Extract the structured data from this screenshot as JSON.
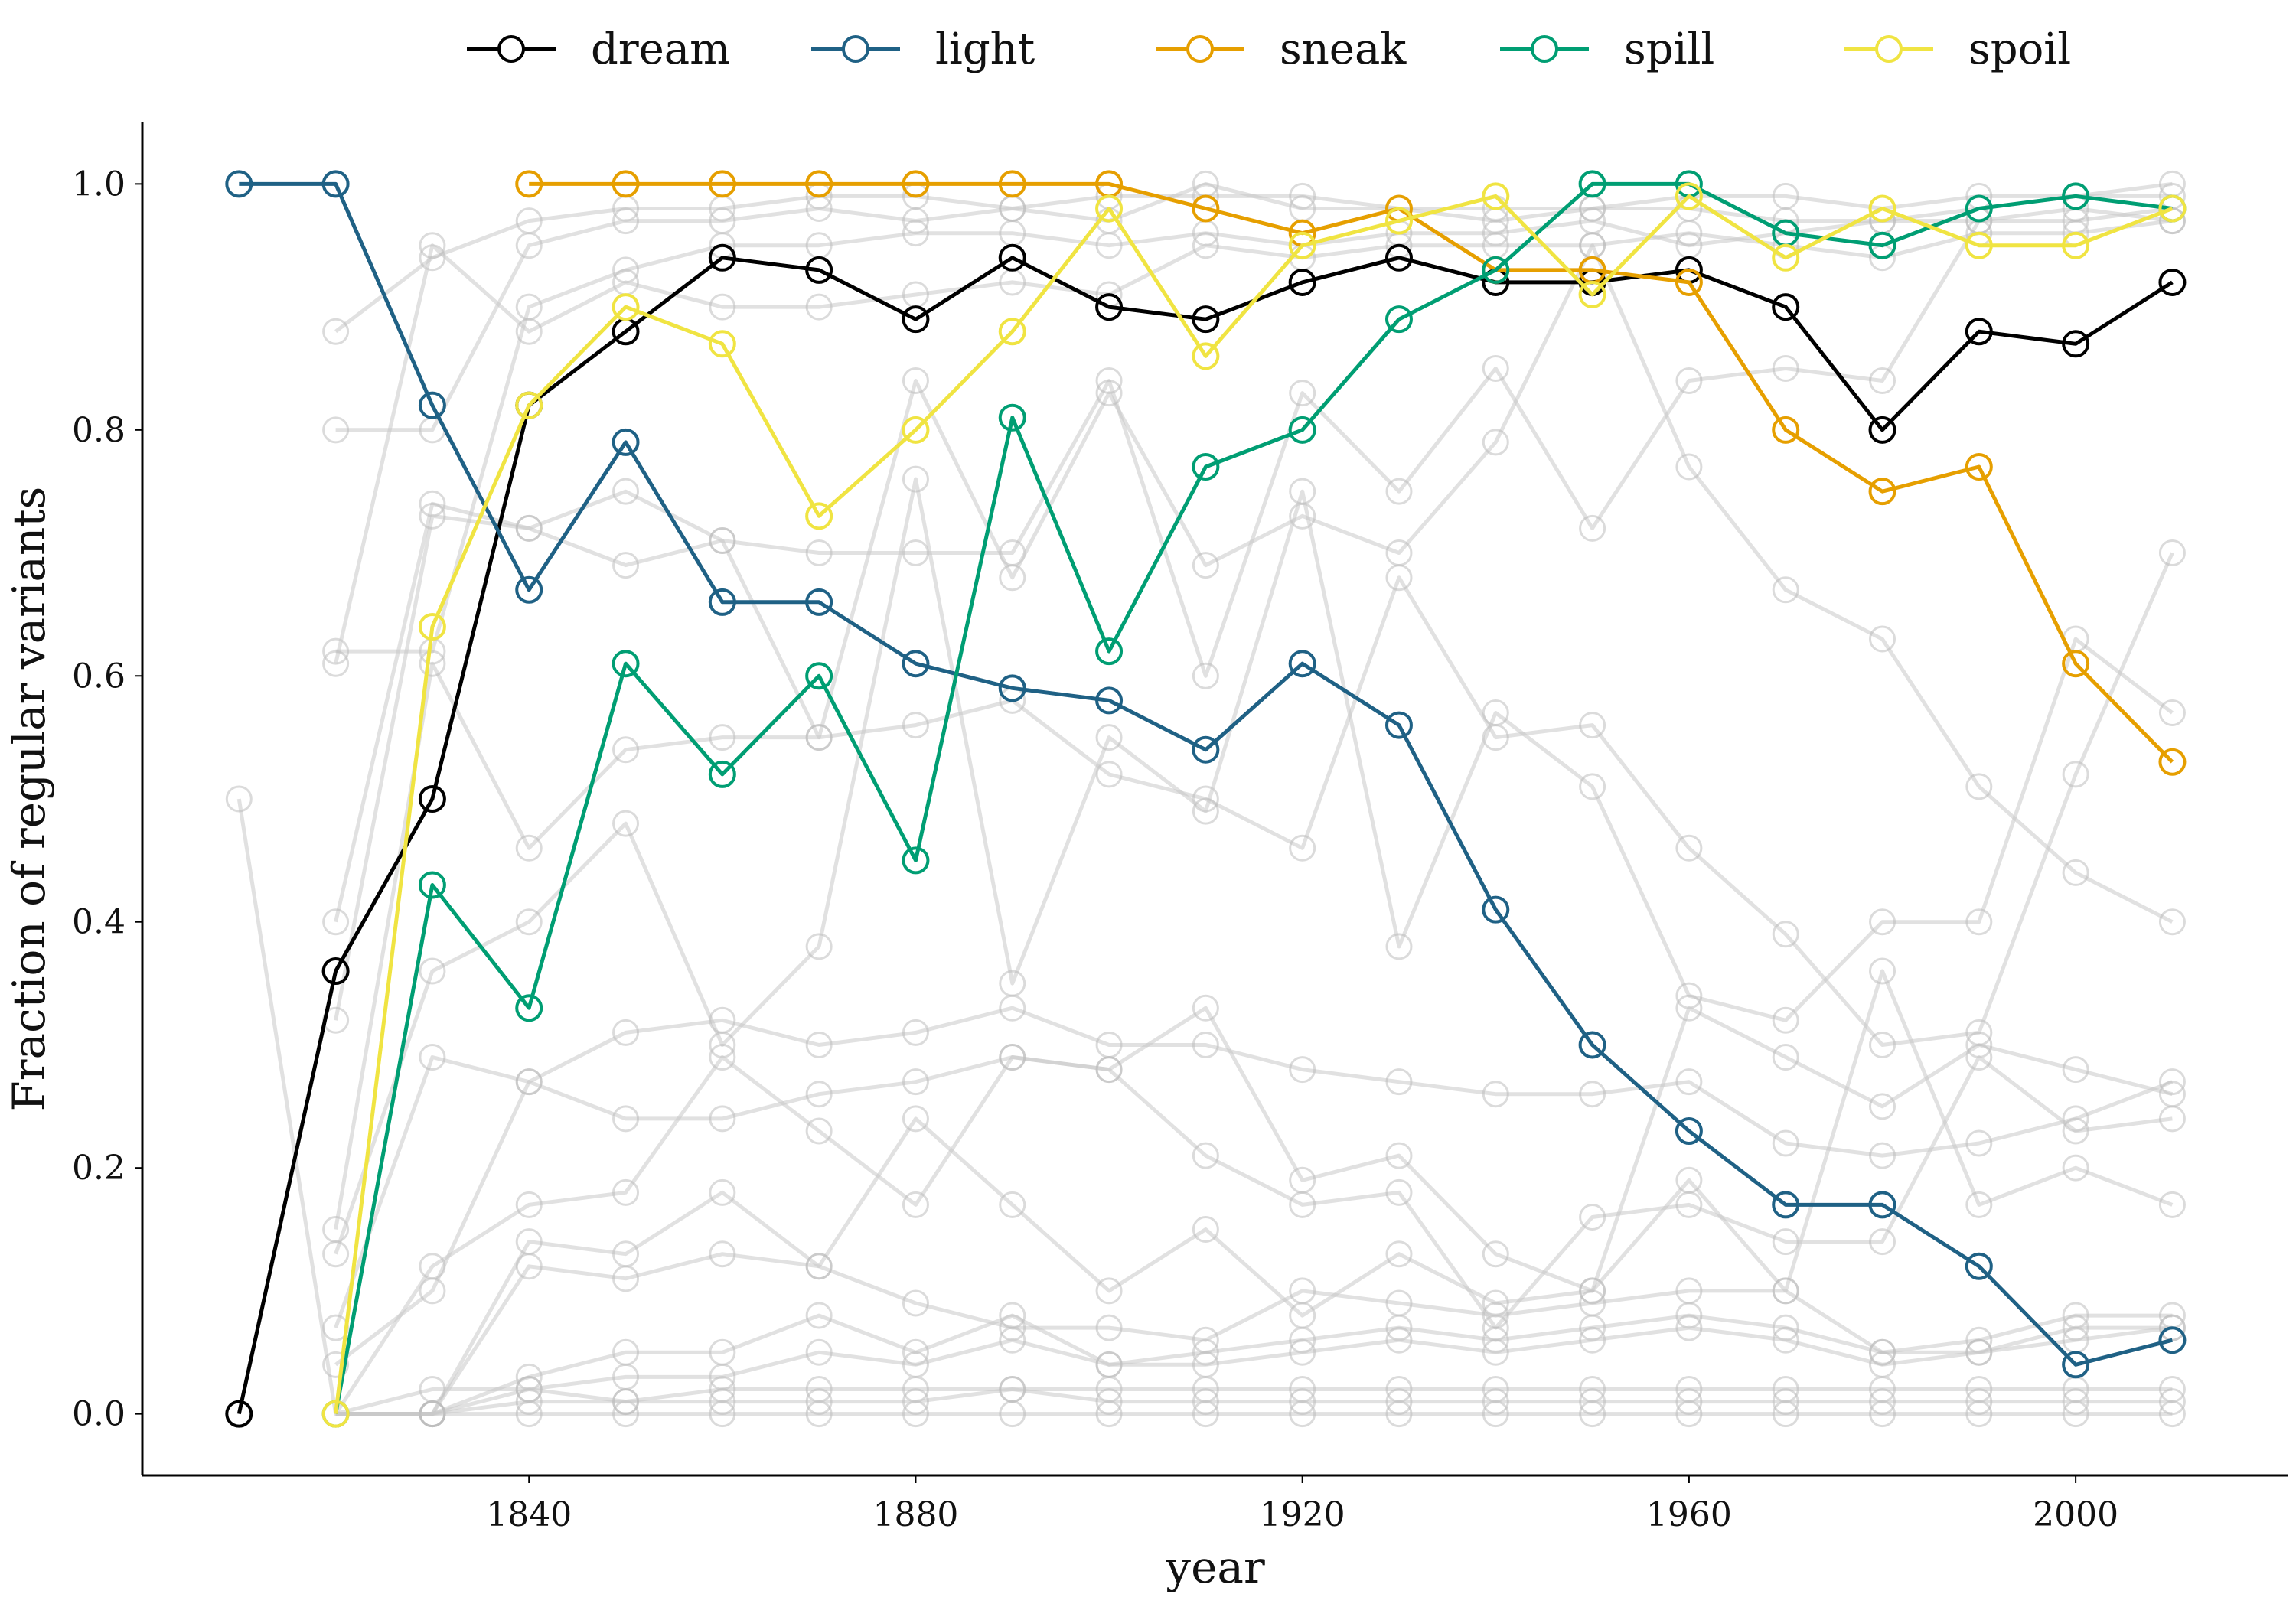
{
  "chart_data": {
    "type": "line",
    "xlabel": "year",
    "ylabel": "Fraction of regular variants",
    "xlim": [
      1800,
      2022
    ],
    "ylim": [
      -0.05,
      1.05
    ],
    "xticks": [
      1840,
      1880,
      1920,
      1960,
      2000
    ],
    "yticks": [
      0.0,
      0.2,
      0.4,
      0.6,
      0.8,
      1.0
    ],
    "ytick_labels": [
      "0.0",
      "0.2",
      "0.4",
      "0.6",
      "0.8",
      "1.0"
    ],
    "grid": false,
    "legend": "top",
    "x": [
      1810,
      1820,
      1830,
      1840,
      1850,
      1860,
      1870,
      1880,
      1890,
      1900,
      1910,
      1920,
      1930,
      1940,
      1950,
      1960,
      1970,
      1980,
      1990,
      2000,
      2010
    ],
    "series": [
      {
        "name": "dream",
        "color": "#000000",
        "values": [
          0.0,
          0.36,
          0.5,
          0.82,
          0.88,
          0.94,
          0.93,
          0.89,
          0.94,
          0.9,
          0.89,
          0.92,
          0.94,
          0.92,
          0.92,
          0.93,
          0.9,
          0.8,
          0.88,
          0.87,
          0.92
        ]
      },
      {
        "name": "light",
        "color": "#1f6185",
        "values": [
          1.0,
          1.0,
          0.82,
          0.67,
          0.79,
          0.66,
          0.66,
          0.61,
          0.59,
          0.58,
          0.54,
          0.61,
          0.56,
          0.41,
          0.3,
          0.23,
          0.17,
          0.17,
          0.12,
          0.04,
          0.06
        ]
      },
      {
        "name": "sneak",
        "color": "#e69f00",
        "values": [
          null,
          null,
          null,
          1.0,
          1.0,
          1.0,
          1.0,
          1.0,
          1.0,
          1.0,
          0.98,
          0.96,
          0.98,
          0.93,
          0.93,
          0.92,
          0.8,
          0.75,
          0.77,
          0.61,
          0.53
        ]
      },
      {
        "name": "spill",
        "color": "#009e73",
        "values": [
          null,
          0.0,
          0.43,
          0.33,
          0.61,
          0.52,
          0.6,
          0.45,
          0.81,
          0.62,
          0.77,
          0.8,
          0.89,
          0.93,
          1.0,
          1.0,
          0.96,
          0.95,
          0.98,
          0.99,
          0.98
        ]
      },
      {
        "name": "spoil",
        "color": "#f0e442",
        "values": [
          null,
          0.0,
          0.64,
          0.82,
          0.9,
          0.87,
          0.73,
          0.8,
          0.88,
          0.98,
          0.86,
          0.95,
          0.97,
          0.99,
          0.91,
          0.99,
          0.94,
          0.98,
          0.95,
          0.95,
          0.98
        ]
      }
    ],
    "background_series": [
      [
        0.5,
        0.0,
        0.0,
        0.0,
        0.0,
        0.0,
        0.0,
        0.0,
        0.0,
        0.0,
        0.0,
        0.0,
        0.0,
        0.0,
        0.0,
        0.0,
        0.0,
        0.0,
        0.0,
        0.0,
        0.0
      ],
      [
        null,
        0.88,
        0.94,
        0.97,
        0.98,
        0.98,
        0.99,
        0.99,
        0.98,
        0.99,
        0.99,
        0.99,
        0.98,
        0.98,
        0.98,
        0.99,
        0.99,
        0.98,
        0.99,
        0.99,
        0.99
      ],
      [
        null,
        0.8,
        0.8,
        0.95,
        0.97,
        0.97,
        0.98,
        0.97,
        0.98,
        0.97,
        1.0,
        0.98,
        0.98,
        0.97,
        0.98,
        0.98,
        0.97,
        0.97,
        0.98,
        0.99,
        1.0
      ],
      [
        null,
        0.62,
        0.62,
        0.9,
        0.93,
        0.95,
        0.95,
        0.96,
        0.96,
        0.95,
        0.96,
        0.95,
        0.96,
        0.96,
        0.97,
        0.95,
        0.96,
        0.97,
        0.97,
        0.97,
        0.98
      ],
      [
        null,
        0.61,
        0.95,
        0.88,
        0.92,
        0.9,
        0.9,
        0.91,
        0.92,
        0.91,
        0.95,
        0.94,
        0.95,
        0.95,
        0.95,
        0.96,
        0.95,
        0.94,
        0.96,
        0.96,
        0.97
      ],
      [
        null,
        0.4,
        0.74,
        0.72,
        0.75,
        0.71,
        0.7,
        0.7,
        0.7,
        0.84,
        0.6,
        0.83,
        0.75,
        0.85,
        0.72,
        0.84,
        0.85,
        0.84,
        0.97,
        0.98,
        0.97
      ],
      [
        null,
        0.32,
        0.73,
        0.72,
        0.69,
        0.71,
        0.55,
        0.84,
        0.68,
        0.83,
        0.69,
        0.73,
        0.7,
        0.79,
        0.95,
        0.77,
        0.67,
        0.63,
        0.51,
        0.44,
        0.4
      ],
      [
        null,
        0.15,
        0.61,
        0.46,
        0.54,
        0.55,
        0.55,
        0.56,
        0.58,
        0.52,
        0.5,
        0.46,
        0.68,
        0.55,
        0.56,
        0.46,
        0.39,
        0.3,
        0.31,
        0.52,
        0.7
      ],
      [
        null,
        0.13,
        0.36,
        0.4,
        0.48,
        0.3,
        0.38,
        0.76,
        0.35,
        0.55,
        0.49,
        0.75,
        0.38,
        0.57,
        0.51,
        0.34,
        0.32,
        0.4,
        0.4,
        0.63,
        0.57
      ],
      [
        null,
        0.07,
        0.29,
        0.27,
        0.31,
        0.32,
        0.3,
        0.31,
        0.33,
        0.3,
        0.3,
        0.28,
        0.27,
        0.26,
        0.26,
        0.27,
        0.22,
        0.21,
        0.22,
        0.24,
        0.27
      ],
      [
        null,
        0.04,
        0.1,
        0.27,
        0.24,
        0.24,
        0.26,
        0.27,
        0.29,
        0.28,
        0.33,
        0.19,
        0.21,
        0.13,
        0.1,
        0.33,
        0.29,
        0.25,
        0.3,
        0.28,
        0.26
      ],
      [
        null,
        0.0,
        0.12,
        0.17,
        0.18,
        0.29,
        0.23,
        0.17,
        0.29,
        0.28,
        0.21,
        0.17,
        0.18,
        0.07,
        0.16,
        0.17,
        0.14,
        0.14,
        0.29,
        0.23,
        0.24
      ],
      [
        null,
        0.0,
        0.0,
        0.14,
        0.13,
        0.18,
        0.12,
        0.24,
        0.17,
        0.1,
        0.15,
        0.08,
        0.13,
        0.09,
        0.1,
        0.19,
        0.1,
        0.36,
        0.17,
        0.2,
        0.17
      ],
      [
        null,
        0.0,
        0.0,
        0.12,
        0.11,
        0.13,
        0.12,
        0.09,
        0.07,
        0.07,
        0.06,
        0.1,
        0.09,
        0.08,
        0.09,
        0.1,
        0.1,
        0.05,
        0.06,
        0.08,
        0.08
      ],
      [
        null,
        0.0,
        0.0,
        0.03,
        0.05,
        0.05,
        0.08,
        0.05,
        0.08,
        0.04,
        0.05,
        0.06,
        0.07,
        0.06,
        0.07,
        0.08,
        0.07,
        0.05,
        0.05,
        0.07,
        0.07
      ],
      [
        null,
        0.0,
        0.0,
        0.02,
        0.03,
        0.03,
        0.05,
        0.04,
        0.06,
        0.04,
        0.04,
        0.05,
        0.06,
        0.05,
        0.06,
        0.07,
        0.06,
        0.04,
        0.05,
        0.06,
        0.07
      ],
      [
        null,
        0.0,
        0.0,
        0.01,
        0.01,
        0.02,
        0.02,
        0.02,
        0.02,
        0.02,
        0.02,
        0.02,
        0.02,
        0.02,
        0.02,
        0.02,
        0.02,
        0.02,
        0.02,
        0.02,
        0.02
      ],
      [
        null,
        0.0,
        0.02,
        0.02,
        0.01,
        0.01,
        0.01,
        0.01,
        0.02,
        0.01,
        0.01,
        0.01,
        0.01,
        0.01,
        0.01,
        0.01,
        0.01,
        0.01,
        0.01,
        0.01,
        0.01
      ]
    ]
  }
}
